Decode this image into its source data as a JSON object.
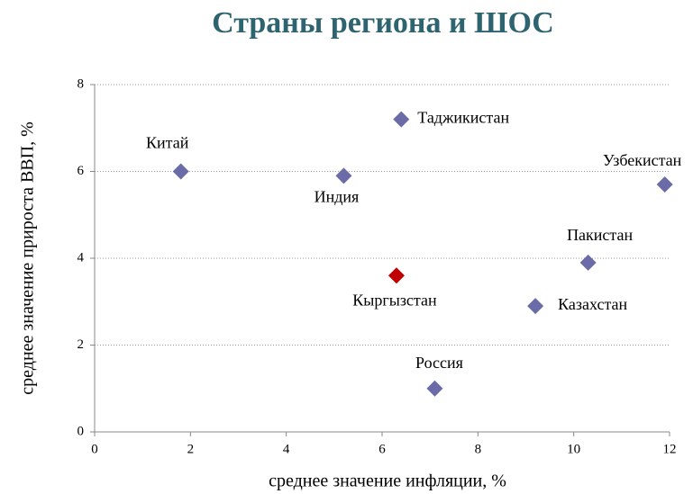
{
  "chart_data": {
    "type": "scatter",
    "title": "Страны региона и ШОС",
    "x_label": "среднее значение инфляции, %",
    "y_label": "среднее значение прироста ВВП, %",
    "labels": [
      "Китай",
      "Индия",
      "Таджикистан",
      "Узбекистан",
      "Пакистан",
      "Кыргызстан",
      "Казахстан",
      "Россия"
    ],
    "x": [
      1.8,
      5.2,
      6.4,
      11.9,
      10.3,
      6.3,
      9.2,
      7.1
    ],
    "values": [
      6.0,
      5.9,
      7.2,
      5.7,
      3.9,
      3.6,
      2.9,
      1.0
    ],
    "colors": [
      "#6b6ba8",
      "#6b6ba8",
      "#6b6ba8",
      "#6b6ba8",
      "#6b6ba8",
      "#c00000",
      "#6b6ba8",
      "#6b6ba8"
    ],
    "xlim": [
      0,
      12
    ],
    "xticks": [
      0,
      2,
      4,
      6,
      8,
      10,
      12
    ],
    "ylim": [
      0,
      8
    ],
    "yticks": [
      0,
      2,
      4,
      6,
      8
    ],
    "grid": true
  }
}
